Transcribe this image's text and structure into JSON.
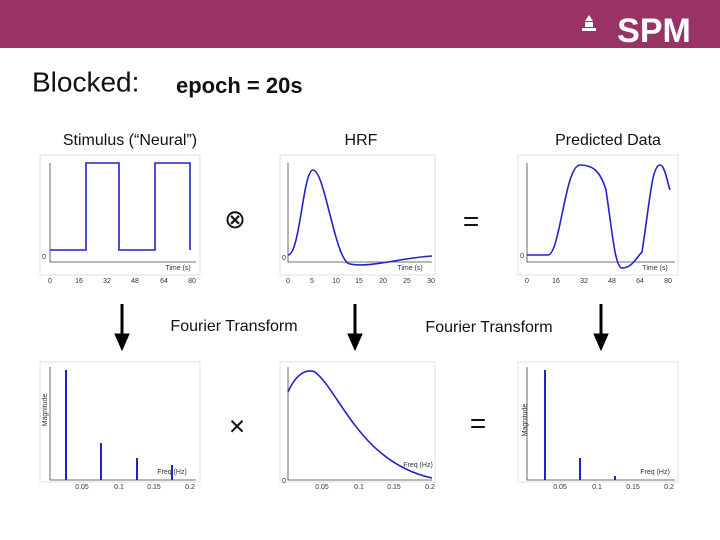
{
  "header": {
    "logo": "SPM"
  },
  "title": {
    "lead": "Blocked:",
    "detail": "epoch = 20s"
  },
  "column_labels": [
    "Stimulus (“Neural”)",
    "HRF",
    "Predicted Data"
  ],
  "operators": [
    "⊗",
    "=",
    "×",
    "="
  ],
  "transform_labels": [
    "Fourier Transform",
    "Fourier Transform"
  ],
  "plots": [
    {
      "x_label": "Time (s)",
      "y_tick": "0",
      "x_ticks": [
        "0",
        "16",
        "32",
        "48",
        "64",
        "80"
      ]
    },
    {
      "x_label": "Time (s)",
      "y_tick": "0",
      "x_ticks": [
        "0",
        "5",
        "10",
        "15",
        "20",
        "25",
        "30"
      ]
    },
    {
      "x_label": "Time (s)",
      "y_tick": "0",
      "x_ticks": [
        "0",
        "16",
        "32",
        "48",
        "64",
        "80"
      ]
    },
    {
      "x_label": "Freq (Hz)",
      "y_label": "Magnitude",
      "x_ticks": [
        "0.05",
        "0.1",
        "0.15",
        "0.2"
      ]
    },
    {
      "x_label": "Freq (Hz)",
      "y_tick": "0",
      "x_ticks": [
        "0.05",
        "0.1",
        "0.15",
        "0.2"
      ]
    },
    {
      "x_label": "Freq (Hz)",
      "y_label": "Magnitude",
      "x_ticks": [
        "0.05",
        "0.1",
        "0.15",
        "0.2"
      ]
    }
  ]
}
